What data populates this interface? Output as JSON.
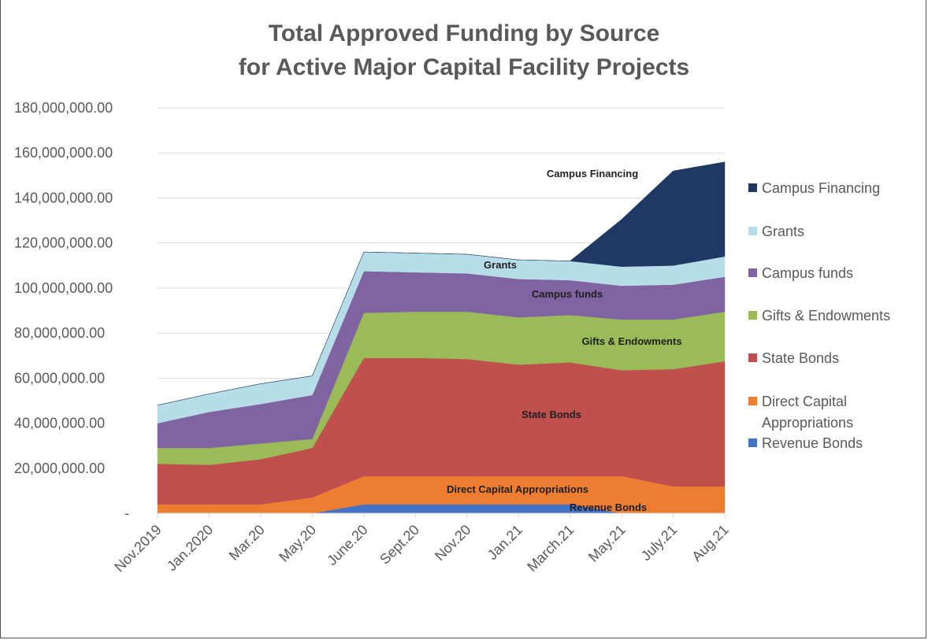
{
  "chart_data": {
    "type": "area",
    "stacked": true,
    "title": "Total Approved Funding by Source",
    "subtitle": "for Active Major Capital Facility Projects",
    "categories": [
      "Nov.2019",
      "Jan.2020",
      "Mar.20",
      "May.20",
      "June.20",
      "Sept.20",
      "Nov.20",
      "Jan.21",
      "March.21",
      "May.21",
      "July.21",
      "Aug.21"
    ],
    "ylim": [
      0,
      180000000
    ],
    "yticks": [
      "-",
      "20,000,000.00",
      "40,000,000.00",
      "60,000,000.00",
      "80,000,000.00",
      "100,000,000.00",
      "120,000,000.00",
      "140,000,000.00",
      "160,000,000.00",
      "180,000,000.00"
    ],
    "grid": true,
    "legend_position": "right",
    "series": [
      {
        "name": "Revenue Bonds",
        "color": "#4472C4",
        "values": [
          0,
          0,
          0,
          0,
          4000000,
          4000000,
          4000000,
          4000000,
          4000000,
          0,
          0,
          0
        ]
      },
      {
        "name": "Direct Capital Appropriations",
        "color": "#ED7D31",
        "values": [
          4000000,
          4000000,
          4000000,
          7000000,
          12500000,
          12500000,
          12500000,
          12500000,
          12500000,
          16500000,
          12000000,
          12000000
        ]
      },
      {
        "name": "State Bonds",
        "color": "#C0504D",
        "values": [
          18000000,
          17500000,
          20000000,
          22000000,
          52500000,
          52500000,
          52000000,
          49500000,
          50500000,
          47000000,
          52000000,
          55500000
        ]
      },
      {
        "name": "Gifts & Endowments",
        "color": "#9BBB59",
        "values": [
          7000000,
          7500000,
          7000000,
          4000000,
          20000000,
          20500000,
          21000000,
          21000000,
          21000000,
          22500000,
          22000000,
          22000000
        ]
      },
      {
        "name": "Campus funds",
        "color": "#8064A2",
        "values": [
          11000000,
          16000000,
          17500000,
          19500000,
          18500000,
          17500000,
          17000000,
          17000000,
          15500000,
          15000000,
          15500000,
          15500000
        ]
      },
      {
        "name": "Grants",
        "color": "#B7DEE8",
        "values": [
          8000000,
          8000000,
          9000000,
          8500000,
          8500000,
          8500000,
          8500000,
          8500000,
          8500000,
          8500000,
          8500000,
          9000000
        ]
      },
      {
        "name": "Campus Financing",
        "color": "#1F3864",
        "values": [
          0,
          0,
          0,
          0,
          0,
          0,
          0,
          0,
          0,
          21000000,
          42000000,
          42000000
        ]
      }
    ],
    "in_chart_labels": [
      "Campus Financing",
      "Grants",
      "Campus funds",
      "Gifts & Endowments",
      "State Bonds",
      "Direct Capital Appropriations",
      "Revenue Bonds"
    ],
    "legend": [
      {
        "label": "Campus Financing",
        "color": "#1F3864"
      },
      {
        "label": "Grants",
        "color": "#B7DEE8"
      },
      {
        "label": "Campus funds",
        "color": "#8064A2"
      },
      {
        "label": "Gifts & Endowments",
        "color": "#9BBB59"
      },
      {
        "label": "State Bonds",
        "color": "#C0504D"
      },
      {
        "label": "Direct Capital",
        "label2": "Appropriations",
        "color": "#ED7D31"
      },
      {
        "label": "Revenue Bonds",
        "color": "#4472C4"
      }
    ]
  }
}
